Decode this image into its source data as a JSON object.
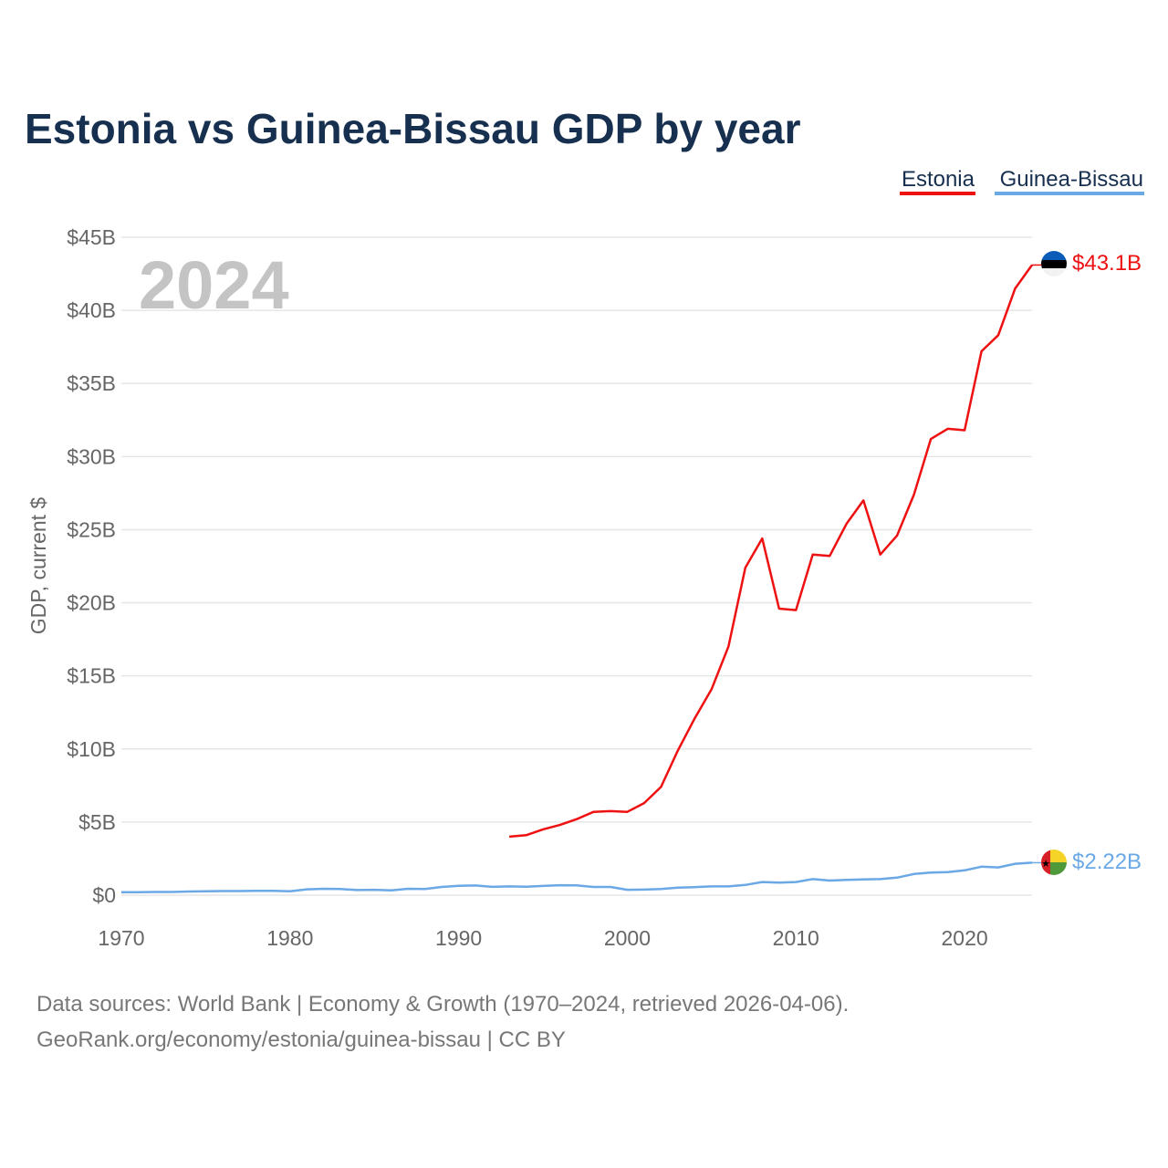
{
  "title": "Estonia vs Guinea-Bissau GDP by year",
  "year_watermark": "2024",
  "footer": {
    "line1": "Data sources: World Bank | Economy & Growth (1970–2024, retrieved 2026-04-06).",
    "line2": "GeoRank.org/economy/estonia/guinea-bissau | CC BY"
  },
  "colors": {
    "title": "#17304f",
    "estonia": "#ee1111",
    "guinea_bissau": "#6aa9e5",
    "axis_text": "#666666",
    "grid": "#e6e6e6",
    "watermark": "#c4c4c4",
    "footer": "#777777",
    "legend_text": "#17304f"
  },
  "chart_data": {
    "type": "line",
    "title": "Estonia vs Guinea-Bissau GDP by year",
    "xlabel": "",
    "ylabel": "GDP, current $",
    "xlim": [
      1970,
      2024
    ],
    "ylim": [
      0,
      45
    ],
    "y_unit": "billions USD",
    "x_ticks": [
      1970,
      1980,
      1990,
      2000,
      2010,
      2020
    ],
    "y_ticks": [
      0,
      5,
      10,
      15,
      20,
      25,
      30,
      35,
      40,
      45
    ],
    "y_tick_labels": [
      "$0",
      "$5B",
      "$10B",
      "$15B",
      "$20B",
      "$25B",
      "$30B",
      "$35B",
      "$40B",
      "$45B"
    ],
    "legend": [
      "Estonia",
      "Guinea-Bissau"
    ],
    "legend_position": "top-right",
    "series": [
      {
        "name": "Estonia",
        "end_label": "$43.1B",
        "flag": "estonia-flag",
        "x": [
          1993,
          1994,
          1995,
          1996,
          1997,
          1998,
          1999,
          2000,
          2001,
          2002,
          2003,
          2004,
          2005,
          2006,
          2007,
          2008,
          2009,
          2010,
          2011,
          2012,
          2013,
          2014,
          2015,
          2016,
          2017,
          2018,
          2019,
          2020,
          2021,
          2022,
          2023,
          2024
        ],
        "values": [
          4.0,
          4.1,
          4.5,
          4.8,
          5.2,
          5.7,
          5.75,
          5.7,
          6.3,
          7.4,
          9.9,
          12.1,
          14.1,
          17.0,
          22.4,
          24.4,
          19.6,
          19.5,
          23.3,
          23.2,
          25.4,
          27.0,
          23.3,
          24.6,
          27.4,
          31.2,
          31.9,
          31.8,
          37.2,
          38.3,
          41.5,
          43.1
        ]
      },
      {
        "name": "Guinea-Bissau",
        "end_label": "$2.22B",
        "flag": "guinea-bissau-flag",
        "x": [
          1970,
          1971,
          1972,
          1973,
          1974,
          1975,
          1976,
          1977,
          1978,
          1979,
          1980,
          1981,
          1982,
          1983,
          1984,
          1985,
          1986,
          1987,
          1988,
          1989,
          1990,
          1991,
          1992,
          1993,
          1994,
          1995,
          1996,
          1997,
          1998,
          1999,
          2000,
          2001,
          2002,
          2003,
          2004,
          2005,
          2006,
          2007,
          2008,
          2009,
          2010,
          2011,
          2012,
          2013,
          2014,
          2015,
          2016,
          2017,
          2018,
          2019,
          2020,
          2021,
          2022,
          2023,
          2024
        ],
        "values": [
          0.2,
          0.2,
          0.22,
          0.22,
          0.25,
          0.27,
          0.28,
          0.28,
          0.3,
          0.3,
          0.27,
          0.4,
          0.44,
          0.42,
          0.35,
          0.37,
          0.33,
          0.44,
          0.42,
          0.56,
          0.64,
          0.66,
          0.57,
          0.6,
          0.58,
          0.63,
          0.68,
          0.67,
          0.56,
          0.56,
          0.37,
          0.38,
          0.42,
          0.52,
          0.55,
          0.6,
          0.6,
          0.7,
          0.9,
          0.86,
          0.9,
          1.1,
          1.0,
          1.05,
          1.08,
          1.1,
          1.2,
          1.45,
          1.55,
          1.58,
          1.7,
          1.95,
          1.9,
          2.15,
          2.22
        ]
      }
    ]
  }
}
